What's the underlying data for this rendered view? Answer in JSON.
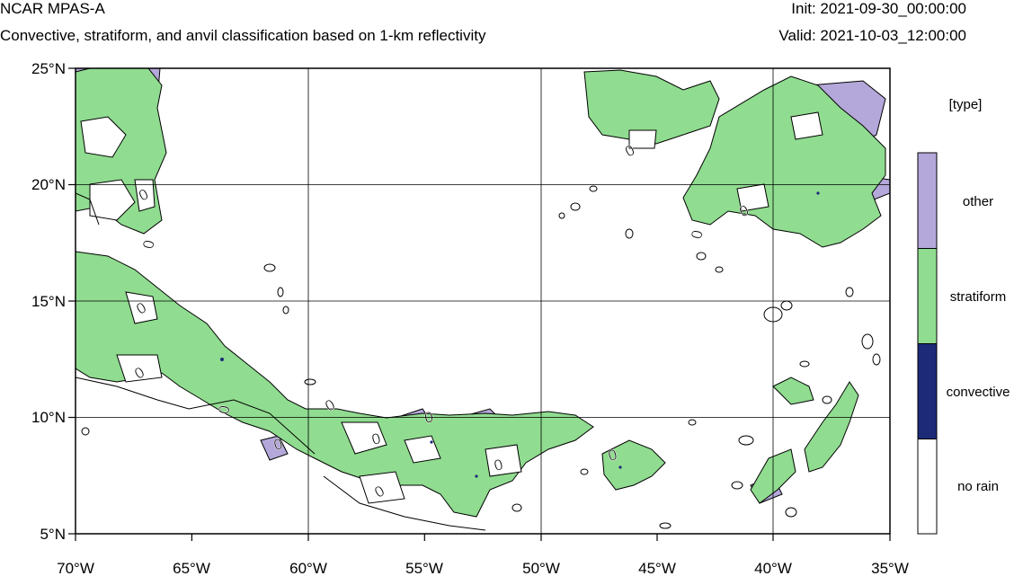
{
  "header": {
    "title": "NCAR MPAS-A",
    "subtitle": "Convective, stratiform, and anvil classification based on 1-km reflectivity",
    "init": "Init: 2021-09-30_00:00:00",
    "valid": "Valid: 2021-10-03_12:00:00"
  },
  "axes": {
    "lat_ticks": [
      "25°N",
      "20°N",
      "15°N",
      "10°N",
      "5°N"
    ],
    "lon_ticks": [
      "70°W",
      "65°W",
      "60°W",
      "55°W",
      "50°W",
      "45°W",
      "40°W",
      "35°W"
    ],
    "lat_range": [
      5,
      25
    ],
    "lon_range": [
      -70,
      -35
    ],
    "grid": true
  },
  "legend": {
    "title": "[type]",
    "items": [
      {
        "label": "other",
        "color": "#b4a7d9"
      },
      {
        "label": "stratiform",
        "color": "#90dc90"
      },
      {
        "label": "convective",
        "color": "#1c2a78"
      },
      {
        "label": "no rain",
        "color": "#ffffff"
      }
    ]
  },
  "contour_label": "0",
  "colors": {
    "other": "#b4a7d9",
    "stratiform": "#90dc90",
    "convective": "#1c2a78",
    "contour": "#000000"
  }
}
